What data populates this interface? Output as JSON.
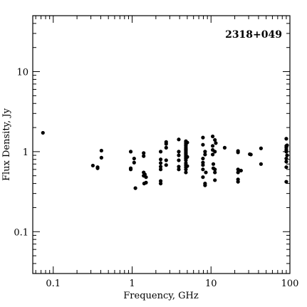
{
  "chart_data": {
    "type": "scatter",
    "title": "2318+049",
    "xlabel": "Frequency, GHz",
    "ylabel": "Flux Density, Jy",
    "xscale": "log",
    "yscale": "log",
    "xlim": [
      0.055,
      100
    ],
    "ylim": [
      0.03,
      50
    ],
    "x_ticks": [
      {
        "value": 0.1,
        "label": "0.1"
      },
      {
        "value": 1,
        "label": "1"
      },
      {
        "value": 10,
        "label": "10"
      },
      {
        "value": 100,
        "label": "100"
      }
    ],
    "y_ticks": [
      {
        "value": 0.1,
        "label": "0.1"
      },
      {
        "value": 1,
        "label": "1"
      },
      {
        "value": 10,
        "label": "10"
      }
    ],
    "grid": false,
    "series": [
      {
        "points": [
          [
            0.074,
            1.72
          ],
          [
            0.318,
            0.67
          ],
          [
            0.365,
            0.62
          ],
          [
            0.365,
            0.64
          ],
          [
            0.408,
            0.84
          ],
          [
            0.408,
            1.03
          ],
          [
            0.96,
            1.0
          ],
          [
            0.96,
            0.6
          ],
          [
            0.96,
            0.62
          ],
          [
            1.06,
            0.82
          ],
          [
            1.06,
            0.73
          ],
          [
            1.1,
            0.35
          ],
          [
            1.4,
            0.96
          ],
          [
            1.4,
            0.88
          ],
          [
            1.4,
            0.55
          ],
          [
            1.4,
            0.5
          ],
          [
            1.42,
            0.4
          ],
          [
            1.45,
            0.52
          ],
          [
            1.5,
            0.48
          ],
          [
            1.5,
            0.41
          ],
          [
            2.3,
            1.0
          ],
          [
            2.3,
            0.8
          ],
          [
            2.3,
            0.72
          ],
          [
            2.3,
            0.65
          ],
          [
            2.3,
            0.6
          ],
          [
            2.3,
            0.43
          ],
          [
            2.3,
            0.4
          ],
          [
            2.7,
            1.32
          ],
          [
            2.7,
            1.25
          ],
          [
            2.7,
            1.12
          ],
          [
            2.7,
            0.78
          ],
          [
            2.7,
            0.68
          ],
          [
            3.9,
            1.42
          ],
          [
            3.9,
            1.0
          ],
          [
            3.9,
            0.9
          ],
          [
            3.9,
            0.78
          ],
          [
            3.9,
            0.65
          ],
          [
            3.9,
            0.6
          ],
          [
            4.8,
            1.35
          ],
          [
            4.8,
            1.28
          ],
          [
            4.8,
            1.22
          ],
          [
            4.8,
            1.18
          ],
          [
            4.8,
            1.12
          ],
          [
            4.8,
            1.08
          ],
          [
            4.8,
            1.05
          ],
          [
            4.8,
            1.02
          ],
          [
            4.8,
            0.98
          ],
          [
            4.8,
            0.95
          ],
          [
            4.8,
            0.92
          ],
          [
            4.8,
            0.88
          ],
          [
            4.8,
            0.84
          ],
          [
            4.8,
            0.82
          ],
          [
            4.8,
            0.78
          ],
          [
            4.8,
            0.72
          ],
          [
            4.8,
            0.68
          ],
          [
            4.8,
            0.64
          ],
          [
            4.8,
            0.6
          ],
          [
            4.8,
            0.55
          ],
          [
            5.0,
            1.3
          ],
          [
            5.0,
            0.86
          ],
          [
            5.0,
            0.66
          ],
          [
            7.9,
            1.5
          ],
          [
            7.9,
            1.22
          ],
          [
            7.9,
            0.82
          ],
          [
            7.9,
            0.73
          ],
          [
            7.9,
            0.68
          ],
          [
            7.9,
            0.6
          ],
          [
            7.9,
            0.48
          ],
          [
            8.4,
            1.0
          ],
          [
            8.4,
            0.92
          ],
          [
            8.4,
            0.4
          ],
          [
            8.4,
            0.38
          ],
          [
            8.6,
            0.55
          ],
          [
            10.5,
            1.55
          ],
          [
            10.5,
            1.18
          ],
          [
            10.5,
            1.05
          ],
          [
            10.5,
            0.92
          ],
          [
            10.7,
            0.7
          ],
          [
            10.7,
            0.62
          ],
          [
            11.2,
            1.4
          ],
          [
            11.2,
            1.0
          ],
          [
            11.2,
            0.6
          ],
          [
            11.2,
            0.55
          ],
          [
            11.2,
            0.44
          ],
          [
            11.5,
            1.28
          ],
          [
            14.9,
            1.12
          ],
          [
            22,
            1.02
          ],
          [
            22,
            0.98
          ],
          [
            22,
            0.6
          ],
          [
            22,
            0.55
          ],
          [
            22,
            0.45
          ],
          [
            22,
            0.42
          ],
          [
            24,
            0.58
          ],
          [
            31,
            0.93
          ],
          [
            32,
            0.92
          ],
          [
            43,
            1.1
          ],
          [
            43,
            0.7
          ],
          [
            90,
            1.45
          ],
          [
            90,
            1.18
          ],
          [
            90,
            1.12
          ],
          [
            90,
            1.05
          ],
          [
            90,
            1.0
          ],
          [
            90,
            0.82
          ],
          [
            90,
            0.75
          ],
          [
            90,
            0.64
          ],
          [
            90,
            0.42
          ],
          [
            92,
            1.2
          ],
          [
            92,
            0.9
          ]
        ]
      }
    ]
  }
}
